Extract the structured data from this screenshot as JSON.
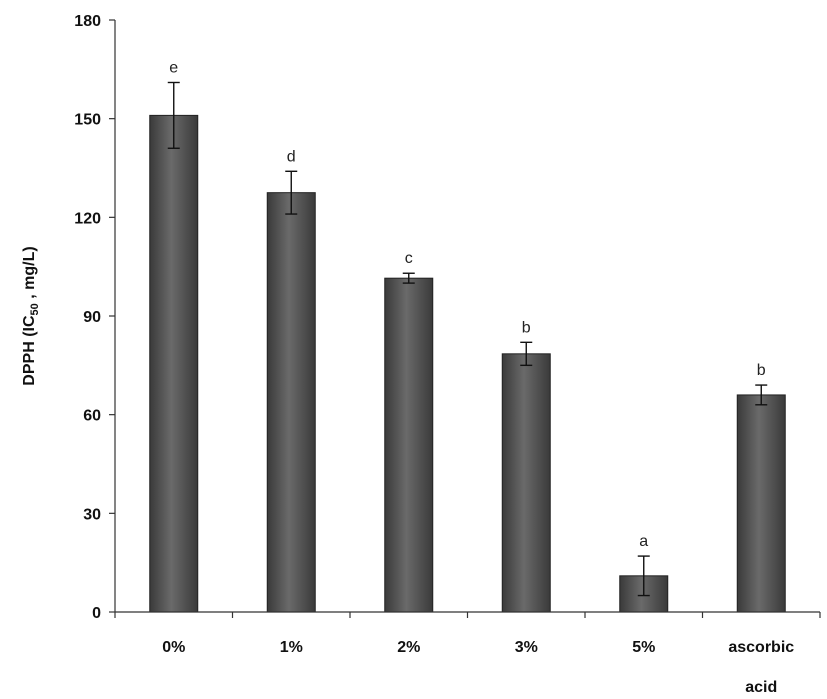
{
  "chart_data": {
    "type": "bar",
    "title": "",
    "ylabel": {
      "prefix": "DPPH (IC",
      "subscript": "50",
      "suffix": " , mg/L)"
    },
    "xlabel": "",
    "categories": [
      [
        "0%"
      ],
      [
        "1%"
      ],
      [
        "2%"
      ],
      [
        "3%"
      ],
      [
        "5%"
      ],
      [
        "ascorbic",
        "acid"
      ]
    ],
    "values": [
      151,
      127.5,
      101.5,
      78.5,
      11,
      66
    ],
    "errors": [
      10,
      6.5,
      1.5,
      3.5,
      6,
      3
    ],
    "significance": [
      "e",
      "d",
      "c",
      "b",
      "a",
      "b"
    ],
    "ylim": [
      0,
      180
    ],
    "yticks": [
      0,
      30,
      60,
      90,
      120,
      150,
      180
    ],
    "grid": false,
    "legend": "none",
    "bar_color": "#555555"
  }
}
